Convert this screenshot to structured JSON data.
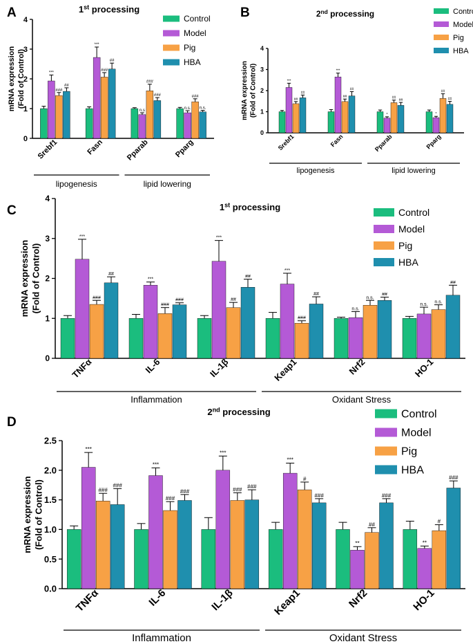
{
  "figure": {
    "panel_labels": [
      "A",
      "B",
      "C",
      "D"
    ],
    "legend_entries": [
      "Control",
      "Model",
      "Pig",
      "HBA"
    ]
  },
  "colors": {
    "Control": "#1bbd7e",
    "Model": "#b45ad6",
    "Pig": "#f7a145",
    "HBA": "#1f8fae",
    "axis": "#000000"
  },
  "chart_data": [
    {
      "panel": "A",
      "type": "bar",
      "title": "1st processing",
      "title_main": "1",
      "title_sup": "st",
      "title_rest": " processing",
      "ylabel": "mRNA expression\n(Fold of Control)",
      "ylabel_lines": [
        "mRNA expression",
        "(Fold of Control)"
      ],
      "ylim": [
        0,
        4
      ],
      "yticks": [
        "0",
        "1",
        "2",
        "3",
        "4"
      ],
      "categories": [
        "Srebf1",
        "Fasn",
        "Pparab",
        "Pparg"
      ],
      "groups": [
        {
          "label": "lipogenesis",
          "from": 0,
          "to": 1
        },
        {
          "label": "lipid lowering",
          "from": 2,
          "to": 3
        }
      ],
      "series": [
        {
          "name": "Control",
          "values": [
            1.0,
            1.0,
            1.0,
            1.0
          ],
          "errors": [
            0.08,
            0.06,
            0.03,
            0.04
          ],
          "annotations": [
            "",
            "",
            "",
            ""
          ]
        },
        {
          "name": "Model",
          "values": [
            1.93,
            2.72,
            0.8,
            0.86
          ],
          "errors": [
            0.2,
            0.35,
            0.06,
            0.07
          ],
          "annotations": [
            "***",
            "***",
            "n.s",
            "n.s."
          ]
        },
        {
          "name": "Pig",
          "values": [
            1.44,
            2.06,
            1.6,
            1.23
          ],
          "errors": [
            0.1,
            0.15,
            0.22,
            0.1
          ],
          "annotations": [
            "###",
            "###",
            "###",
            "###"
          ]
        },
        {
          "name": "HBA",
          "values": [
            1.58,
            2.33,
            1.27,
            0.89
          ],
          "errors": [
            0.12,
            0.2,
            0.1,
            0.05
          ],
          "annotations": [
            "##",
            "##",
            "###",
            "n.s."
          ]
        }
      ]
    },
    {
      "panel": "B",
      "type": "bar",
      "title": "2nd processing",
      "title_main": "2",
      "title_sup": "nd",
      "title_rest": " processing",
      "ylabel": "mRNA expression\n(Fold of Control)",
      "ylabel_lines": [
        "mRNA expression",
        "(Fold of Control)"
      ],
      "ylim": [
        0,
        4
      ],
      "yticks": [
        "0",
        "1",
        "2",
        "3",
        "4"
      ],
      "categories": [
        "Srebf1",
        "Fasn",
        "Pparab",
        "Pparg"
      ],
      "groups": [
        {
          "label": "lipogenesis",
          "from": 0,
          "to": 1
        },
        {
          "label": "lipid lowering",
          "from": 2,
          "to": 3
        }
      ],
      "series": [
        {
          "name": "Control",
          "values": [
            1.0,
            1.0,
            1.0,
            1.0
          ],
          "errors": [
            0.06,
            0.1,
            0.08,
            0.08
          ],
          "annotations": [
            "",
            "",
            "",
            ""
          ]
        },
        {
          "name": "Model",
          "values": [
            2.15,
            2.65,
            0.7,
            0.72
          ],
          "errors": [
            0.2,
            0.18,
            0.06,
            0.06
          ],
          "annotations": [
            "***",
            "***",
            "*",
            "*"
          ]
        },
        {
          "name": "Pig",
          "values": [
            1.38,
            1.48,
            1.43,
            1.63
          ],
          "errors": [
            0.1,
            0.12,
            0.12,
            0.22
          ],
          "annotations": [
            "##",
            "##",
            "##",
            "##"
          ]
        },
        {
          "name": "HBA",
          "values": [
            1.66,
            1.75,
            1.3,
            1.35
          ],
          "errors": [
            0.13,
            0.2,
            0.14,
            0.14
          ],
          "annotations": [
            "##",
            "##",
            "##",
            "##"
          ]
        }
      ]
    },
    {
      "panel": "C",
      "type": "bar",
      "title": "1st processing",
      "title_main": "1",
      "title_sup": "st",
      "title_rest": " processing",
      "ylabel": "mRNA expression\n(Fold of Control)",
      "ylabel_lines": [
        "mRNA expression",
        "(Fold of Control)"
      ],
      "ylim": [
        0,
        4
      ],
      "yticks": [
        "0",
        "1",
        "2",
        "3",
        "4"
      ],
      "categories": [
        "TNFα",
        "IL-6",
        "IL-1β",
        "Keap1",
        "Nrf2",
        "HO-1"
      ],
      "groups": [
        {
          "label": "Inflammation",
          "from": 0,
          "to": 2
        },
        {
          "label": "Oxidant Stress",
          "from": 3,
          "to": 5
        }
      ],
      "series": [
        {
          "name": "Control",
          "values": [
            1.0,
            1.0,
            1.0,
            1.0,
            1.0,
            1.0
          ],
          "errors": [
            0.07,
            0.1,
            0.07,
            0.15,
            0.03,
            0.05
          ],
          "annotations": [
            "",
            "",
            "",
            "",
            "",
            ""
          ]
        },
        {
          "name": "Model",
          "values": [
            2.48,
            1.83,
            2.43,
            1.86,
            1.02,
            1.11
          ],
          "errors": [
            0.5,
            0.08,
            0.52,
            0.27,
            0.15,
            0.17
          ],
          "annotations": [
            "***",
            "***",
            "***",
            "***",
            "n.s.",
            "n.s."
          ]
        },
        {
          "name": "Pig",
          "values": [
            1.35,
            1.12,
            1.27,
            0.88,
            1.33,
            1.22
          ],
          "errors": [
            0.1,
            0.15,
            0.13,
            0.06,
            0.12,
            0.12
          ],
          "annotations": [
            "###",
            "###",
            "##",
            "###",
            "n.s.",
            "n.s."
          ]
        },
        {
          "name": "HBA",
          "values": [
            1.89,
            1.34,
            1.78,
            1.36,
            1.45,
            1.58
          ],
          "errors": [
            0.15,
            0.05,
            0.2,
            0.18,
            0.08,
            0.25
          ],
          "annotations": [
            "##",
            "###",
            "##",
            "##",
            "##",
            "##"
          ]
        }
      ]
    },
    {
      "panel": "D",
      "type": "bar",
      "title": "2nd processing",
      "title_main": "2",
      "title_sup": "nd",
      "title_rest": " processing",
      "ylabel": "mRNA expression\n(Fold of Control)",
      "ylabel_lines": [
        "mRNA expression",
        "(Fold of Control)"
      ],
      "ylim": [
        0,
        2.5
      ],
      "yticks": [
        "0.0",
        "0.5",
        "1.0",
        "1.5",
        "2.0",
        "2.5"
      ],
      "categories": [
        "TNFα",
        "IL-6",
        "IL-1β",
        "Keap1",
        "Nrf2",
        "HO-1"
      ],
      "groups": [
        {
          "label": "Inflammation",
          "from": 0,
          "to": 2
        },
        {
          "label": "Oxidant Stress",
          "from": 3,
          "to": 5
        }
      ],
      "series": [
        {
          "name": "Control",
          "values": [
            1.0,
            1.0,
            1.0,
            1.0,
            1.0,
            1.0
          ],
          "errors": [
            0.06,
            0.1,
            0.2,
            0.12,
            0.12,
            0.14
          ],
          "annotations": [
            "",
            "",
            "",
            "",
            "",
            ""
          ]
        },
        {
          "name": "Model",
          "values": [
            2.05,
            1.91,
            2.0,
            1.95,
            0.65,
            0.68
          ],
          "errors": [
            0.25,
            0.13,
            0.24,
            0.17,
            0.06,
            0.04
          ],
          "annotations": [
            "***",
            "***",
            "***",
            "***",
            "**",
            "**"
          ]
        },
        {
          "name": "Pig",
          "values": [
            1.48,
            1.32,
            1.49,
            1.67,
            0.95,
            0.98
          ],
          "errors": [
            0.13,
            0.15,
            0.13,
            0.13,
            0.08,
            0.1
          ],
          "annotations": [
            "###",
            "###",
            "###",
            "#",
            "##",
            "#"
          ]
        },
        {
          "name": "HBA",
          "values": [
            1.42,
            1.49,
            1.5,
            1.45,
            1.45,
            1.7
          ],
          "errors": [
            0.27,
            0.1,
            0.17,
            0.07,
            0.07,
            0.12
          ],
          "annotations": [
            "###",
            "###",
            "###",
            "###",
            "###",
            "###"
          ]
        }
      ]
    }
  ]
}
